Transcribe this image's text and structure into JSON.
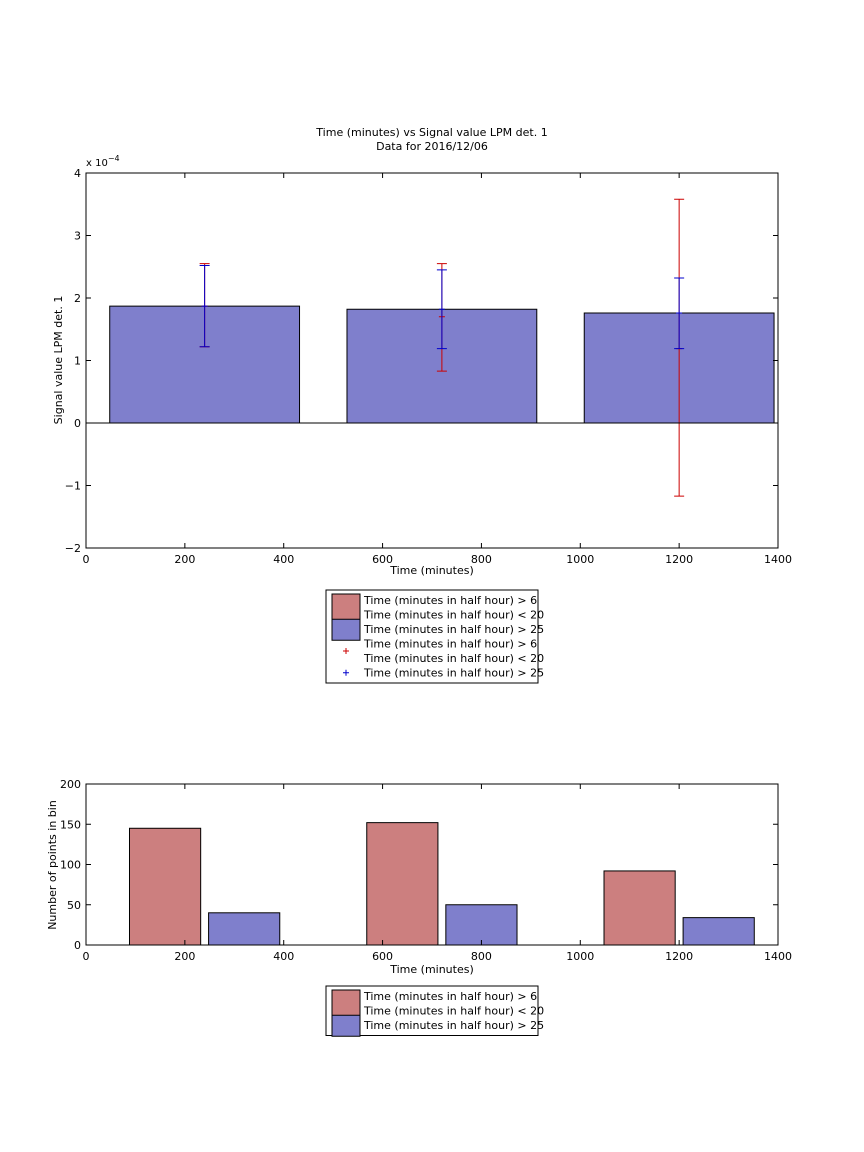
{
  "chart_data": [
    {
      "type": "bar",
      "title": "Time (minutes) vs Signal value LPM det. 1",
      "subtitle": "Data for 2016/12/06",
      "xlabel": "Time (minutes)",
      "ylabel": "Signal value LPM det. 1",
      "y_exponent_label": "x 10",
      "y_exponent_power": "−4",
      "xlim": [
        0,
        1400
      ],
      "ylim": [
        -2,
        4
      ],
      "y_scale_factor": 0.0001,
      "grid": false,
      "legend_placement": "below",
      "xticks": [
        "0",
        "200",
        "400",
        "600",
        "800",
        "1000",
        "1200",
        "1400"
      ],
      "yticks": [
        "−2",
        "−1",
        "0",
        "1",
        "2",
        "3",
        "4"
      ],
      "bars": [
        {
          "x": 240,
          "value": 1.87
        },
        {
          "x": 720,
          "value": 1.82
        },
        {
          "x": 1200,
          "value": 1.76
        }
      ],
      "errorbars": [
        {
          "series": "red",
          "x": 240,
          "center": 1.87,
          "low": 1.22,
          "high": 2.55
        },
        {
          "series": "red",
          "x": 720,
          "center": 1.7,
          "low": 0.83,
          "high": 2.55
        },
        {
          "series": "red",
          "x": 1200,
          "center": 1.19,
          "low": -1.17,
          "high": 3.58
        },
        {
          "series": "blue",
          "x": 240,
          "center": 1.87,
          "low": 1.22,
          "high": 2.52
        },
        {
          "series": "blue",
          "x": 720,
          "center": 1.82,
          "low": 1.19,
          "high": 2.45
        },
        {
          "series": "blue",
          "x": 1200,
          "center": 1.76,
          "low": 1.19,
          "high": 2.32
        }
      ],
      "legend": [
        {
          "kind": "patch",
          "color": "#cc7f7f",
          "lines": [
            "Time (minutes in half hour) > 6",
            "Time (minutes in half hour) < 20"
          ]
        },
        {
          "kind": "patch",
          "color": "#7f7fcc",
          "lines": [
            "Time (minutes in half hour) > 25"
          ]
        },
        {
          "kind": "marker",
          "color": "#cc0000",
          "lines": [
            "Time (minutes in half hour) > 6",
            "Time (minutes in half hour) < 20"
          ]
        },
        {
          "kind": "marker",
          "color": "#0000cc",
          "lines": [
            "Time (minutes in half hour) > 25"
          ]
        }
      ]
    },
    {
      "type": "bar",
      "xlabel": "Time (minutes)",
      "ylabel": "Number of points in bin",
      "xlim": [
        0,
        1400
      ],
      "ylim": [
        0,
        200
      ],
      "grid": false,
      "legend_placement": "below",
      "xticks": [
        "0",
        "200",
        "400",
        "600",
        "800",
        "1000",
        "1200",
        "1400"
      ],
      "yticks": [
        "0",
        "50",
        "100",
        "150",
        "200"
      ],
      "categories": [
        240,
        720,
        1200
      ],
      "series": [
        {
          "color": "#cc7f7f",
          "values": [
            145,
            152,
            92
          ]
        },
        {
          "color": "#7f7fcc",
          "values": [
            40,
            50,
            34
          ]
        }
      ],
      "legend": [
        {
          "kind": "patch",
          "color": "#cc7f7f",
          "lines": [
            "Time (minutes in half hour) > 6",
            "Time (minutes in half hour) < 20"
          ]
        },
        {
          "kind": "patch",
          "color": "#7f7fcc",
          "lines": [
            "Time (minutes in half hour) > 25"
          ]
        }
      ]
    }
  ]
}
